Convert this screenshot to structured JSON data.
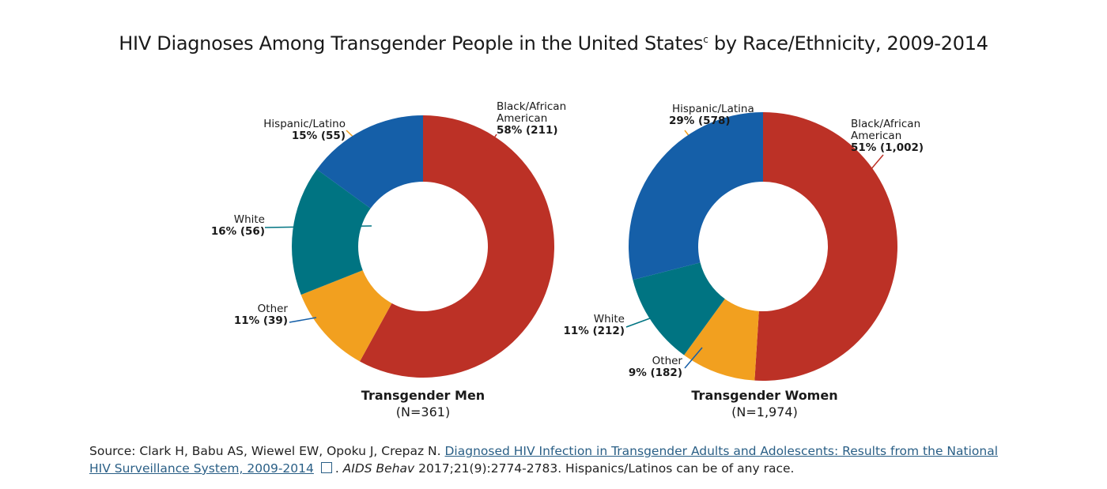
{
  "title": "HIV Diagnoses Among Transgender People in the United States",
  "title_sup": "c",
  "title_tail": " by Race/Ethnicity, 2009-2014",
  "chart_data": [
    {
      "type": "pie",
      "donut": true,
      "title": "Transgender Men",
      "subtitle": "(N=361)",
      "categories": [
        "Black/African American",
        "Other",
        "White",
        "Hispanic/Latino"
      ],
      "percents": [
        58,
        11,
        16,
        15
      ],
      "counts": [
        211,
        39,
        56,
        55
      ],
      "value_labels": [
        "58% (211)",
        "11% (39)",
        "16% (56)",
        "15% (55)"
      ],
      "colors": [
        "#bc3126",
        "#f2a01f",
        "#007482",
        "#155fa8"
      ]
    },
    {
      "type": "pie",
      "donut": true,
      "title": "Transgender Women",
      "subtitle": "(N=1,974)",
      "categories": [
        "Black/African American",
        "Other",
        "White",
        "Hispanic/Latina"
      ],
      "percents": [
        51,
        9,
        11,
        29
      ],
      "counts": [
        1002,
        182,
        212,
        578
      ],
      "value_labels": [
        "51% (1,002)",
        "9% (182)",
        "11% (212)",
        "29% (578)"
      ],
      "colors": [
        "#bc3126",
        "#f2a01f",
        "#007482",
        "#155fa8"
      ]
    }
  ],
  "source": {
    "prefix": "Source: Clark H, Babu AS, Wiewel EW, Opoku J, Crepaz N. ",
    "link": "Diagnosed HIV Infection in Transgender Adults and Adolescents: Results from the National HIV Surveillance System, 2009-2014",
    "link_icon": "external-link-icon",
    "journal": "AIDS Behav",
    "suffix": " 2017;21(9):2774-2783. Hispanics/Latinos can be of any race."
  }
}
